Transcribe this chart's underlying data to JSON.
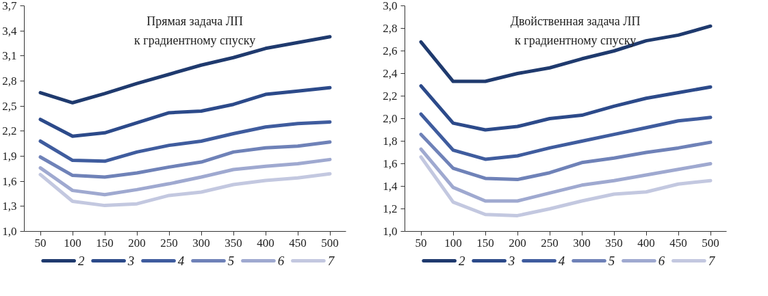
{
  "chart_data": [
    {
      "type": "line",
      "title": "Прямая задача ЛП\nк градиентному спуску",
      "categories": [
        "50",
        "100",
        "150",
        "200",
        "250",
        "300",
        "350",
        "400",
        "450",
        "500"
      ],
      "ylim": [
        1.0,
        3.7
      ],
      "yticks": [
        {
          "value": 1.0,
          "label": "1,0"
        },
        {
          "value": 1.3,
          "label": "1,3"
        },
        {
          "value": 1.6,
          "label": "1,6"
        },
        {
          "value": 1.9,
          "label": "1,9"
        },
        {
          "value": 2.2,
          "label": "2,2"
        },
        {
          "value": 2.5,
          "label": "2,5"
        },
        {
          "value": 2.8,
          "label": "2,8"
        },
        {
          "value": 3.1,
          "label": "3,1"
        },
        {
          "value": 3.4,
          "label": "3,4"
        },
        {
          "value": 3.7,
          "label": "3,7"
        }
      ],
      "grid": false,
      "legend": "bottom",
      "marker": "none",
      "line_style": "solid",
      "series": [
        {
          "name": "2",
          "color": "#1f3a6e",
          "values": [
            2.66,
            2.54,
            2.65,
            2.77,
            2.88,
            2.99,
            3.08,
            3.19,
            3.26,
            3.33
          ]
        },
        {
          "name": "3",
          "color": "#2c4a8a",
          "values": [
            2.34,
            2.14,
            2.18,
            2.3,
            2.42,
            2.44,
            2.52,
            2.64,
            2.68,
            2.72
          ]
        },
        {
          "name": "4",
          "color": "#3f5c9e",
          "values": [
            2.08,
            1.85,
            1.84,
            1.95,
            2.03,
            2.08,
            2.17,
            2.25,
            2.29,
            2.31
          ]
        },
        {
          "name": "5",
          "color": "#6f82b8",
          "values": [
            1.89,
            1.67,
            1.65,
            1.7,
            1.77,
            1.83,
            1.95,
            2.0,
            2.02,
            2.07
          ]
        },
        {
          "name": "6",
          "color": "#9fa9d0",
          "values": [
            1.76,
            1.49,
            1.44,
            1.5,
            1.57,
            1.65,
            1.74,
            1.78,
            1.81,
            1.86
          ]
        },
        {
          "name": "7",
          "color": "#c3c8e0",
          "values": [
            1.68,
            1.36,
            1.31,
            1.33,
            1.43,
            1.47,
            1.56,
            1.61,
            1.64,
            1.69
          ]
        }
      ]
    },
    {
      "type": "line",
      "title": "Двойственная задача ЛП\nк градиентному спуску",
      "categories": [
        "50",
        "100",
        "150",
        "200",
        "250",
        "300",
        "350",
        "400",
        "450",
        "500"
      ],
      "ylim": [
        1.0,
        3.0
      ],
      "yticks": [
        {
          "value": 1.0,
          "label": "1,0"
        },
        {
          "value": 1.2,
          "label": "1,2"
        },
        {
          "value": 1.4,
          "label": "1,4"
        },
        {
          "value": 1.6,
          "label": "1,6"
        },
        {
          "value": 1.8,
          "label": "1,8"
        },
        {
          "value": 2.0,
          "label": "2,0"
        },
        {
          "value": 2.2,
          "label": "2,2"
        },
        {
          "value": 2.4,
          "label": "2,4"
        },
        {
          "value": 2.6,
          "label": "2,6"
        },
        {
          "value": 2.8,
          "label": "2,8"
        },
        {
          "value": 3.0,
          "label": "3,0"
        }
      ],
      "grid": false,
      "legend": "bottom",
      "marker": "none",
      "line_style": "solid",
      "series": [
        {
          "name": "2",
          "color": "#1f3a6e",
          "values": [
            2.68,
            2.33,
            2.33,
            2.4,
            2.45,
            2.53,
            2.6,
            2.69,
            2.74,
            2.82
          ]
        },
        {
          "name": "3",
          "color": "#2c4a8a",
          "values": [
            2.29,
            1.96,
            1.9,
            1.93,
            2.0,
            2.03,
            2.11,
            2.18,
            2.23,
            2.28
          ]
        },
        {
          "name": "4",
          "color": "#3f5c9e",
          "values": [
            2.04,
            1.72,
            1.64,
            1.67,
            1.74,
            1.8,
            1.86,
            1.92,
            1.98,
            2.01
          ]
        },
        {
          "name": "5",
          "color": "#6f82b8",
          "values": [
            1.86,
            1.56,
            1.47,
            1.46,
            1.52,
            1.61,
            1.65,
            1.7,
            1.74,
            1.79
          ]
        },
        {
          "name": "6",
          "color": "#9fa9d0",
          "values": [
            1.73,
            1.39,
            1.27,
            1.27,
            1.34,
            1.41,
            1.45,
            1.5,
            1.55,
            1.6
          ]
        },
        {
          "name": "7",
          "color": "#c3c8e0",
          "values": [
            1.66,
            1.26,
            1.15,
            1.14,
            1.2,
            1.27,
            1.33,
            1.35,
            1.42,
            1.45
          ]
        }
      ]
    }
  ]
}
